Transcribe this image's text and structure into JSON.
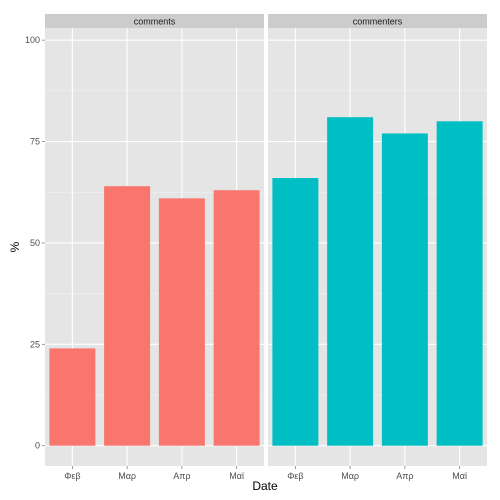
{
  "chart_data": {
    "type": "bar",
    "xlabel": "Date",
    "ylabel": "%",
    "ylim": [
      -5,
      103
    ],
    "yticks": [
      0,
      25,
      50,
      75,
      100
    ],
    "grid": true,
    "categories": [
      "Φεβ",
      "Μαρ",
      "Απρ",
      "Μαϊ"
    ],
    "panels": [
      {
        "name": "comments",
        "color": "#F8766D",
        "values": [
          24,
          64,
          61,
          63
        ]
      },
      {
        "name": "commenters",
        "color": "#00BFC4",
        "values": [
          66,
          81,
          77,
          80
        ]
      }
    ]
  }
}
